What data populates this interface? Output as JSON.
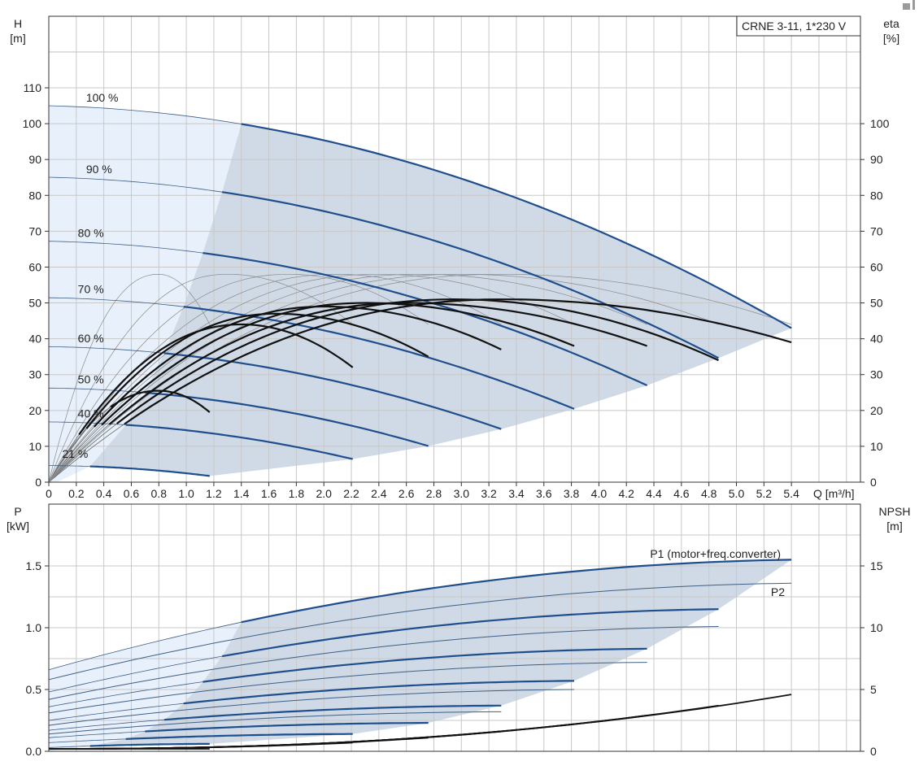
{
  "chart_data": [
    {
      "type": "line",
      "panel": "head",
      "legend_box": "CRNE 3-11, 1*230 V",
      "legend_position": "top-right",
      "y_left_label": "H",
      "y_left_unit": "[m]",
      "y_right_label": "eta",
      "y_right_unit": "[%]",
      "x_label": "Q [m³/h]",
      "xlim": [
        0,
        5.9
      ],
      "ylim": [
        0,
        130
      ],
      "grid": true,
      "x_ticks": [
        "0",
        "0.2",
        "0.4",
        "0.6",
        "0.8",
        "1.0",
        "1.2",
        "1.4",
        "1.6",
        "1.8",
        "2.0",
        "2.2",
        "2.4",
        "2.6",
        "2.8",
        "3.0",
        "3.2",
        "3.4",
        "3.6",
        "3.8",
        "4.0",
        "4.2",
        "4.4",
        "4.6",
        "4.8",
        "5.0",
        "5.2",
        "5.4"
      ],
      "y_left_ticks": [
        "0",
        "10",
        "20",
        "30",
        "40",
        "50",
        "60",
        "70",
        "80",
        "90",
        "100",
        "110"
      ],
      "y_right_ticks": [
        "0",
        "10",
        "20",
        "30",
        "40",
        "50",
        "60",
        "70",
        "80",
        "90",
        "100"
      ],
      "speed_curves": [
        {
          "label": "100 %",
          "speed": 1.0,
          "h0": 105.0,
          "q_light_end": 1.4,
          "q_end": 5.4
        },
        {
          "label": "90 %",
          "speed": 0.9,
          "h0": 85.5,
          "q_light_end": 1.26,
          "q_end": 4.87
        },
        {
          "label": "80 %",
          "speed": 0.8,
          "h0": 68.0,
          "q_light_end": 1.12,
          "q_end": 4.35
        },
        {
          "label": "70 %",
          "speed": 0.7,
          "h0": 52.0,
          "q_light_end": 0.98,
          "q_end": 3.82
        },
        {
          "label": "60 %",
          "speed": 0.6,
          "h0": 38.5,
          "q_light_end": 0.84,
          "q_end": 3.29
        },
        {
          "label": "50 %",
          "speed": 0.5,
          "h0": 26.5,
          "q_light_end": 0.7,
          "q_end": 2.76
        },
        {
          "label": "40 %",
          "speed": 0.4,
          "h0": 17.0,
          "q_light_end": 0.56,
          "q_end": 2.21
        },
        {
          "label": "21 %",
          "speed": 0.21,
          "h0": 4.7,
          "q_light_end": 0.3,
          "q_end": 1.17
        }
      ],
      "efficiency_curves": [
        {
          "speed": 1.0,
          "q_end": 5.4,
          "eta_max": 51,
          "q_best": 3.3,
          "eta_end": 39
        },
        {
          "speed": 0.9,
          "q_end": 4.87,
          "eta_max": 51,
          "q_best": 2.95,
          "eta_end": 34
        },
        {
          "speed": 0.8,
          "q_end": 4.35,
          "eta_max": 50,
          "q_best": 2.6,
          "eta_end": 38
        },
        {
          "speed": 0.7,
          "q_end": 3.82,
          "eta_max": 50,
          "q_best": 2.3,
          "eta_end": 38
        },
        {
          "speed": 0.6,
          "q_end": 3.29,
          "eta_max": 49,
          "q_best": 2.0,
          "eta_end": 37
        },
        {
          "speed": 0.5,
          "q_end": 2.76,
          "eta_max": 47,
          "q_best": 1.65,
          "eta_end": 35
        },
        {
          "speed": 0.4,
          "q_end": 2.21,
          "eta_max": 44,
          "q_best": 1.4,
          "eta_end": 32
        },
        {
          "speed": 0.21,
          "q_end": 1.17,
          "eta_max": 25.5,
          "q_best": 0.8,
          "eta_end": 19.5
        }
      ]
    },
    {
      "type": "line",
      "panel": "power",
      "y_left_label": "P",
      "y_left_unit": "[kW]",
      "y_right_label": "NPSH",
      "y_right_unit": "[m]",
      "xlim": [
        0,
        5.9
      ],
      "ylim": [
        0,
        1.98
      ],
      "grid": true,
      "y_left_ticks": [
        "0.0",
        "0.5",
        "1.0",
        "1.5"
      ],
      "y_right_ticks": [
        "0",
        "5",
        "10",
        "15"
      ],
      "series_labels": [
        "P1 (motor+freq.converter)",
        "P2"
      ],
      "p1_curves": [
        {
          "speed": 1.0,
          "p_q0": 0.66,
          "p_light_end": 1.03,
          "p_end": 1.55,
          "q_end": 5.4
        },
        {
          "speed": 0.9,
          "p_q0": 0.48,
          "p_light_end": 0.76,
          "p_end": 1.15,
          "q_end": 4.87
        },
        {
          "speed": 0.8,
          "p_q0": 0.36,
          "p_light_end": 0.56,
          "p_end": 0.83,
          "q_end": 4.35
        },
        {
          "speed": 0.7,
          "p_q0": 0.25,
          "p_light_end": 0.38,
          "p_end": 0.57,
          "q_end": 3.82
        },
        {
          "speed": 0.6,
          "p_q0": 0.17,
          "p_light_end": 0.25,
          "p_end": 0.37,
          "q_end": 3.29
        },
        {
          "speed": 0.5,
          "p_q0": 0.11,
          "p_light_end": 0.16,
          "p_end": 0.23,
          "q_end": 2.76
        },
        {
          "speed": 0.4,
          "p_q0": 0.07,
          "p_light_end": 0.1,
          "p_end": 0.14,
          "q_end": 2.21
        },
        {
          "speed": 0.21,
          "p_q0": 0.03,
          "p_light_end": 0.04,
          "p_end": 0.06,
          "q_end": 1.17
        }
      ],
      "p2_curves": [
        {
          "speed": 1.0,
          "p_q0": 0.58,
          "p_end": 1.36,
          "q_end": 5.4
        },
        {
          "speed": 0.9,
          "p_q0": 0.42,
          "p_end": 1.01,
          "q_end": 4.87
        },
        {
          "speed": 0.8,
          "p_q0": 0.31,
          "p_end": 0.72,
          "q_end": 4.35
        },
        {
          "speed": 0.7,
          "p_q0": 0.21,
          "p_end": 0.5,
          "q_end": 3.82
        },
        {
          "speed": 0.6,
          "p_q0": 0.14,
          "p_end": 0.32,
          "q_end": 3.29
        }
      ],
      "npsh_curves": [
        {
          "speed": 1.0,
          "q_end": 5.4,
          "npsh_end": 4.6
        },
        {
          "speed": 0.9,
          "q_end": 4.87,
          "npsh_end": 3.7
        },
        {
          "speed": 0.8,
          "q_end": 4.35,
          "npsh_end": 2.9
        },
        {
          "speed": 0.7,
          "q_end": 3.82,
          "npsh_end": 2.2
        },
        {
          "speed": 0.6,
          "q_end": 3.29,
          "npsh_end": 1.6
        },
        {
          "speed": 0.5,
          "q_end": 2.76,
          "npsh_end": 1.1
        },
        {
          "speed": 0.4,
          "q_end": 2.21,
          "npsh_end": 0.7
        },
        {
          "speed": 0.21,
          "q_end": 1.17,
          "npsh_end": 0.2
        }
      ]
    }
  ],
  "colors": {
    "curve_blue": "#1f4e8c",
    "thin_blue": "#3f5f86",
    "area_main": "#cfdae6",
    "area_light": "#e8f1fb",
    "efficiency": "#111111",
    "thin_eff": "#666666",
    "grid": "#c8c8c8"
  }
}
